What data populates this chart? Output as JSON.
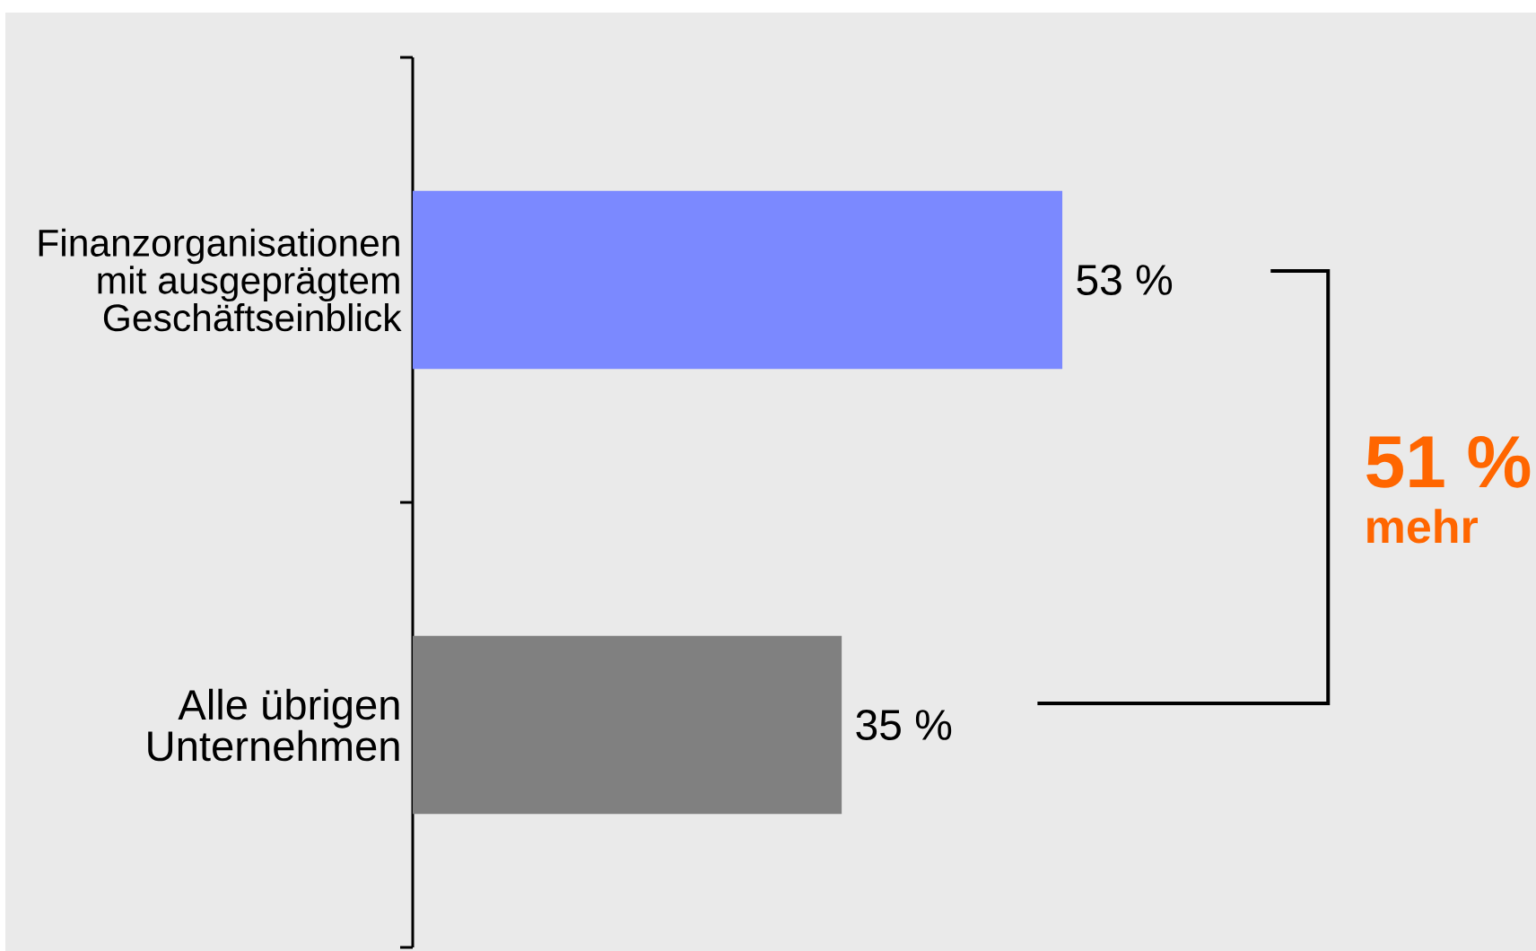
{
  "chart_data": {
    "type": "bar",
    "orientation": "horizontal",
    "categories": [
      "Finanzorganisationen mit ausgeprägtem Geschäftseinblick",
      "Alle übrigen Unternehmen"
    ],
    "values": [
      53,
      35
    ],
    "colors": [
      "#7b89ff",
      "#808080"
    ],
    "value_labels": [
      "53 %",
      "35 %"
    ],
    "annotations": [
      "51 %",
      "mehr"
    ],
    "tick_labels": "y"
  }
}
